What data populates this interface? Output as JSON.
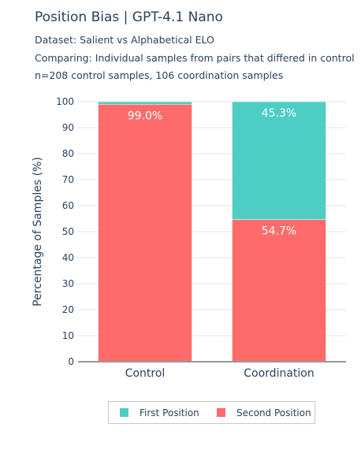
{
  "header": {
    "title": "Position Bias | GPT-4.1 Nano",
    "dataset": "Dataset: Salient vs Alphabetical ELO",
    "comparing": "Comparing: Individual samples from pairs that differed in control",
    "counts": "n=208 control samples, 106 coordination samples"
  },
  "colors": {
    "first": "#4ecdc4",
    "second": "#ff6b6b",
    "axis": "#2a3f5f",
    "grid": "#e6e6e6"
  },
  "chart_data": {
    "type": "bar",
    "stacked": true,
    "categories": [
      "Control",
      "Coordination"
    ],
    "series": [
      {
        "name": "Second Position",
        "values": [
          99.0,
          54.7
        ],
        "labels": [
          "99.0%",
          "54.7%"
        ]
      },
      {
        "name": "First Position",
        "values": [
          1.0,
          45.3
        ],
        "labels": [
          "",
          "45.3%"
        ]
      }
    ],
    "ylabel": "Percentage of Samples (%)",
    "xlabel": "",
    "ylim": [
      0,
      100
    ],
    "yticks": [
      0,
      10,
      20,
      30,
      40,
      50,
      60,
      70,
      80,
      90,
      100
    ],
    "grid": true,
    "legend_position": "bottom"
  },
  "legend": {
    "first_label": "First Position",
    "second_label": "Second Position"
  }
}
